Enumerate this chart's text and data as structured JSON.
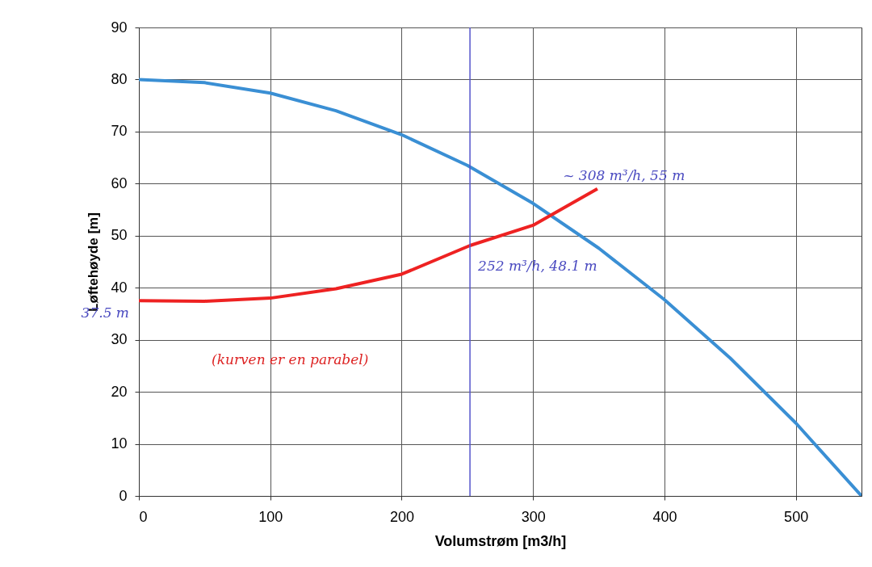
{
  "chart_data": {
    "type": "line",
    "xlabel": "Volumstrøm [m3/h]",
    "ylabel": "Løftehøyde [m]",
    "xlim": [
      0,
      550
    ],
    "xticks": [
      0,
      100,
      200,
      300,
      400,
      500
    ],
    "ylim": [
      0,
      90
    ],
    "yticks": [
      0,
      10,
      20,
      30,
      40,
      50,
      60,
      70,
      80,
      90
    ],
    "grid": true,
    "series": [
      {
        "color": "#3a8fd4",
        "x": [
          0,
          50,
          100,
          150,
          200,
          250,
          300,
          350,
          400,
          450,
          500,
          550
        ],
        "values": [
          80,
          79.4,
          77.4,
          74,
          69.4,
          63.5,
          56.2,
          47.6,
          37.7,
          26.5,
          14,
          0
        ]
      },
      {
        "color": "#ee2222",
        "x": [
          0,
          50,
          100,
          150,
          200,
          252,
          300,
          349
        ],
        "values": [
          37.5,
          37.4,
          38,
          39.8,
          42.6,
          48.1,
          52,
          59
        ]
      }
    ],
    "ref_lines": [
      {
        "axis": "x",
        "value": 252,
        "color": "#5555cc"
      }
    ],
    "annotations": [
      "(kurven er en parabel)",
      {
        "text": "37.5 m",
        "x": 0,
        "y": 37.5
      },
      {
        "text": "252 m³/h, 48.1 m",
        "x": 252,
        "y": 48.1
      },
      {
        "text": "~ 308 m³/h, 55 m",
        "x": 308,
        "y": 55
      }
    ]
  }
}
